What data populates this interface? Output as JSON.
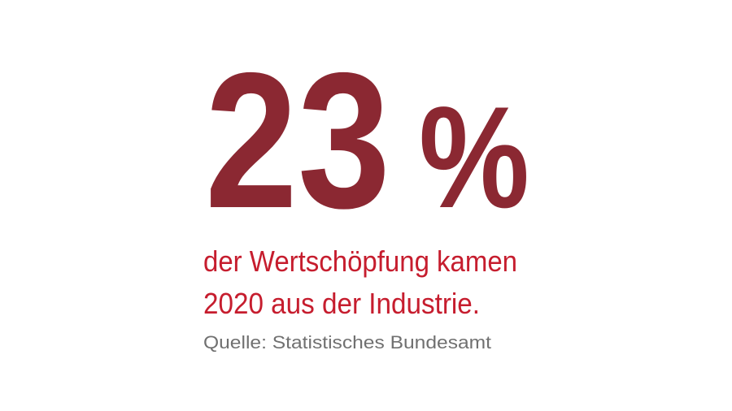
{
  "stat": {
    "number": "23",
    "unit": "%",
    "description": [
      "der Wertschöpfung kamen",
      "2020 aus der Industrie."
    ],
    "source": "Quelle: Statistisches Bundesamt"
  }
}
